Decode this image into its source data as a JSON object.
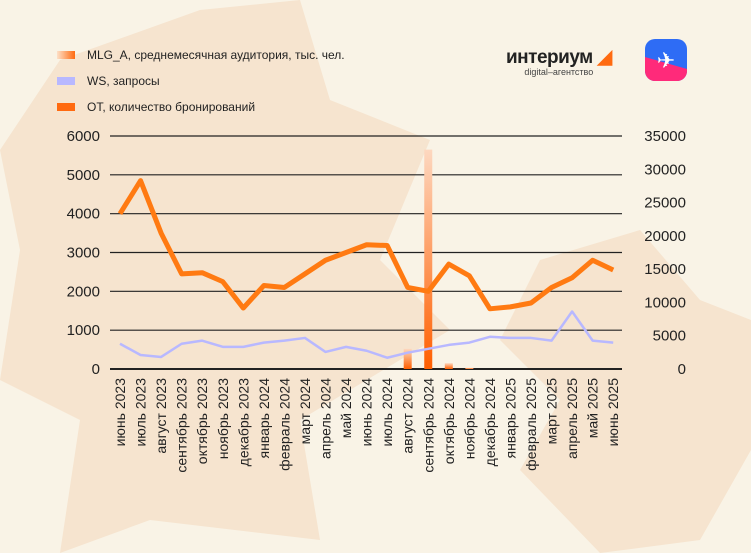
{
  "logo": {
    "name": "интериум",
    "tagline": "digital–агентство"
  },
  "app_icon": "airplane-app-icon",
  "chart_data": {
    "type": "bar+line",
    "legend_position": "top-left",
    "grid": true,
    "categories": [
      "июнь 2023",
      "июль 2023",
      "август 2023",
      "сентябрь 2023",
      "октябрь 2023",
      "ноябрь 2023",
      "декабрь 2023",
      "январь 2024",
      "февраль 2024",
      "март 2024",
      "апрель 2024",
      "май 2024",
      "июнь 2024",
      "июль 2024",
      "август 2024",
      "сентябрь 2024",
      "октябрь 2024",
      "ноябрь 2024",
      "декабрь 2024",
      "январь 2025",
      "февраль 2025",
      "март 2025",
      "апрель 2025",
      "май 2025",
      "июнь 2025"
    ],
    "left_axis": {
      "ylim": [
        0,
        6000
      ],
      "ticks": [
        "0",
        "1000",
        "2000",
        "3000",
        "4000",
        "5000",
        "6000"
      ]
    },
    "right_axis": {
      "ylim": [
        0,
        35000
      ],
      "ticks": [
        "0",
        "5000",
        "10000",
        "15000",
        "20000",
        "25000",
        "30000",
        "35000"
      ]
    },
    "series": [
      {
        "name": "MLG_A, среднемесячная аудитория, тыс. чел.",
        "type": "bar",
        "color": "#ff6a10",
        "values": [
          0,
          0,
          0,
          0,
          0,
          0,
          0,
          0,
          0,
          0,
          0,
          0,
          0,
          0,
          520,
          5650,
          150,
          30,
          0,
          0,
          0,
          0,
          0,
          0,
          0
        ]
      },
      {
        "name": "WS, запросы",
        "type": "line",
        "color": "#b8b8ff",
        "values": [
          650,
          360,
          310,
          650,
          730,
          570,
          570,
          680,
          730,
          800,
          440,
          570,
          470,
          290,
          420,
          520,
          620,
          680,
          830,
          800,
          800,
          730,
          1480,
          730,
          680
        ]
      },
      {
        "name": "OT, количество бронирований",
        "type": "line",
        "color": "#ff7a12",
        "values": [
          4000,
          4850,
          3500,
          2450,
          2480,
          2250,
          1570,
          2150,
          2100,
          2450,
          2800,
          3000,
          3200,
          3180,
          2100,
          2000,
          2700,
          2400,
          1550,
          1600,
          1700,
          2100,
          2350,
          2800,
          2550
        ]
      }
    ]
  }
}
